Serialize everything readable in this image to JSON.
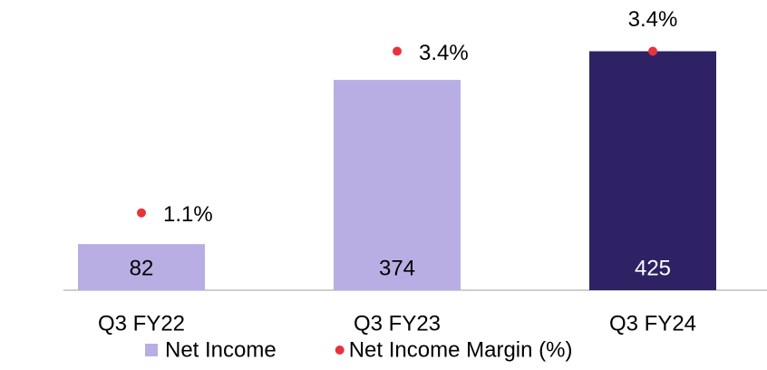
{
  "chart_data": {
    "type": "bar",
    "categories": [
      "Q3 FY22",
      "Q3 FY23",
      "Q3 FY24"
    ],
    "series": [
      {
        "name": "Net Income",
        "type": "bar",
        "color": "#b8aee3",
        "colors": [
          "#b8aee3",
          "#b8aee3",
          "#2e2264"
        ],
        "values": [
          82,
          374,
          425
        ]
      },
      {
        "name": "Net Income Margin (%)",
        "type": "scatter",
        "axis": "y2",
        "color": "#e8323c",
        "values": [
          1.1,
          3.4,
          3.4
        ],
        "value_labels": [
          "1.1%",
          "3.4%",
          "3.4%"
        ]
      }
    ],
    "ylim": [
      0,
      500
    ],
    "y2lim": [
      0,
      4
    ],
    "grid": false
  }
}
